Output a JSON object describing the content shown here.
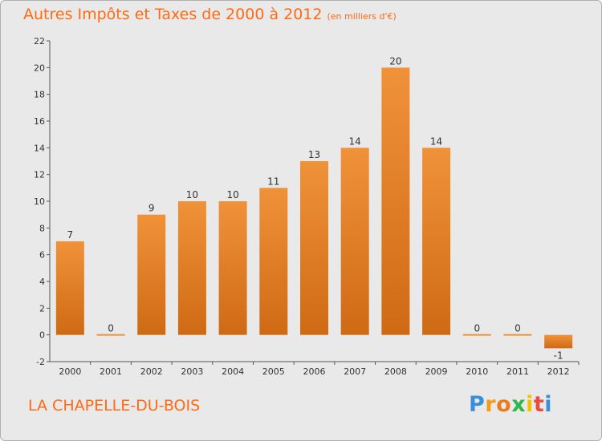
{
  "chart_data": {
    "type": "bar",
    "title": "Autres Impôts et Taxes de 2000 à 2012",
    "subtitle": "(en milliers d'€)",
    "categories": [
      "2000",
      "2001",
      "2002",
      "2003",
      "2004",
      "2005",
      "2006",
      "2007",
      "2008",
      "2009",
      "2010",
      "2011",
      "2012"
    ],
    "values": [
      7,
      0,
      9,
      10,
      10,
      11,
      13,
      14,
      20,
      14,
      0,
      0,
      -1
    ],
    "data_labels": [
      "7",
      "0",
      "9",
      "10",
      "10",
      "11",
      "13",
      "14",
      "20",
      "14",
      "0",
      "0",
      "-1"
    ],
    "y_ticks": [
      "-2",
      "0",
      "2",
      "4",
      "6",
      "8",
      "10",
      "12",
      "14",
      "16",
      "18",
      "20",
      "22"
    ],
    "ylim": [
      -2,
      22
    ],
    "xlabel": "",
    "ylabel": "",
    "grid": false,
    "bar_color": "#f0923a",
    "bar_color_dark": "#cf6a14",
    "accent_color": "#ff6a12"
  },
  "footer": {
    "place": "LA CHAPELLE-DU-BOIS",
    "logo_letters": [
      "P",
      "r",
      "o",
      "x",
      "i",
      "t",
      "i"
    ],
    "logo_colors": [
      "#3a8fd8",
      "#f39c12",
      "#e67e22",
      "#2eb84a",
      "#f2c200",
      "#e74c3c",
      "#3a8fd8"
    ]
  }
}
